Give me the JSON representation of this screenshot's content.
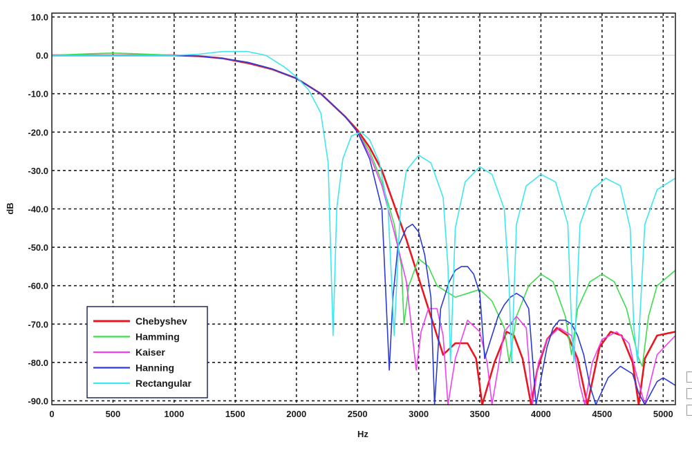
{
  "chart_data": {
    "type": "line",
    "title": "",
    "xlabel": "Hz",
    "ylabel": "dB",
    "xlim": [
      0,
      5100
    ],
    "ylim": [
      -91,
      11
    ],
    "x_ticks": [
      0,
      500,
      1000,
      1500,
      2000,
      2500,
      3000,
      3500,
      4000,
      4500,
      5000
    ],
    "y_ticks": [
      10.0,
      0.0,
      -10.0,
      -20.0,
      -30.0,
      -40.0,
      -50.0,
      -60.0,
      -70.0,
      -80.0,
      -90.0
    ],
    "x_tick_labels": [
      "0",
      "500",
      "1000",
      "1500",
      "2000",
      "2500",
      "3000",
      "3500",
      "4000",
      "4500",
      "5000"
    ],
    "y_tick_labels": [
      "10.0",
      "0.0",
      "-10.0",
      "-20.0",
      "-30.0",
      "-40.0",
      "-50.0",
      "-60.0",
      "-70.0",
      "-80.0",
      "-90.0"
    ],
    "grid": true,
    "legend_position": "bottom-left",
    "series": [
      {
        "name": "Chebyshev",
        "color": "#e8161e",
        "x": [
          0,
          500,
          1000,
          1200,
          1400,
          1600,
          1800,
          2000,
          2200,
          2400,
          2500,
          2600,
          2700,
          2800,
          2900,
          3000,
          3100,
          3200,
          3300,
          3400,
          3470,
          3520,
          3620,
          3720,
          3780,
          3850,
          3920,
          3970,
          4050,
          4130,
          4220,
          4300,
          4380,
          4480,
          4570,
          4660,
          4750,
          4800,
          4850,
          4950,
          5100
        ],
        "y": [
          0,
          0,
          0,
          -0.2,
          -0.8,
          -2,
          -3.6,
          -6,
          -10,
          -16,
          -19.5,
          -24,
          -30,
          -39,
          -48,
          -58,
          -68,
          -78,
          -75,
          -75,
          -79,
          -91,
          -80,
          -72,
          -73,
          -79,
          -91,
          -82,
          -74,
          -71,
          -73,
          -79,
          -91,
          -76,
          -72,
          -73,
          -80,
          -91,
          -79,
          -73,
          -72
        ]
      },
      {
        "name": "Hamming",
        "color": "#3ddc4d",
        "x": [
          0,
          300,
          500,
          700,
          1000,
          1200,
          1400,
          1600,
          1800,
          2000,
          2200,
          2400,
          2500,
          2600,
          2700,
          2800,
          2860,
          2880,
          2920,
          3000,
          3080,
          3150,
          3300,
          3400,
          3500,
          3600,
          3700,
          3740,
          3800,
          3900,
          4000,
          4100,
          4200,
          4250,
          4300,
          4400,
          4500,
          4600,
          4700,
          4800,
          4830,
          4880,
          4950,
          5100
        ],
        "y": [
          0,
          0.4,
          0.6,
          0.4,
          0,
          -0.2,
          -0.8,
          -1.8,
          -3.5,
          -6,
          -10,
          -16,
          -20,
          -25,
          -33,
          -44,
          -55,
          -70,
          -60,
          -53,
          -55,
          -60,
          -63,
          -62,
          -61,
          -64,
          -71,
          -80,
          -68,
          -60,
          -57,
          -59,
          -68,
          -78,
          -66,
          -59,
          -57,
          -59,
          -66,
          -79,
          -81,
          -68,
          -60,
          -56
        ]
      },
      {
        "name": "Kaiser",
        "color": "#f23ef0",
        "x": [
          0,
          500,
          1000,
          1200,
          1400,
          1600,
          1800,
          2000,
          2200,
          2400,
          2500,
          2600,
          2700,
          2800,
          2900,
          2980,
          3020,
          3080,
          3150,
          3200,
          3240,
          3300,
          3400,
          3500,
          3560,
          3600,
          3700,
          3800,
          3880,
          3930,
          3980,
          4050,
          4150,
          4250,
          4320,
          4360,
          4420,
          4500,
          4620,
          4720,
          4780,
          4850,
          4950,
          5100
        ],
        "y": [
          0,
          0,
          0,
          -0.2,
          -0.8,
          -1.8,
          -3.5,
          -6,
          -10,
          -16,
          -20,
          -26,
          -34,
          -46,
          -59,
          -82,
          -72,
          -66,
          -66,
          -73,
          -91,
          -79,
          -69,
          -72,
          -80,
          -91,
          -72,
          -68,
          -71,
          -91,
          -80,
          -74,
          -71,
          -73,
          -86,
          -91,
          -80,
          -74,
          -72,
          -75,
          -83,
          -91,
          -78,
          -73
        ]
      },
      {
        "name": "Hanning",
        "color": "#2a3ad6",
        "x": [
          0,
          500,
          1000,
          1200,
          1400,
          1600,
          1800,
          2000,
          2200,
          2400,
          2500,
          2600,
          2700,
          2760,
          2790,
          2830,
          2900,
          2950,
          3000,
          3050,
          3100,
          3130,
          3180,
          3250,
          3300,
          3350,
          3400,
          3450,
          3500,
          3540,
          3600,
          3650,
          3700,
          3750,
          3800,
          3850,
          3900,
          3960,
          4050,
          4100,
          4150,
          4200,
          4250,
          4300,
          4350,
          4400,
          4450,
          4550,
          4650,
          4750,
          4800,
          4850,
          4900,
          4950,
          5000,
          5050,
          5100
        ],
        "y": [
          0,
          0,
          0,
          -0.2,
          -0.8,
          -1.8,
          -3.5,
          -6,
          -10,
          -16,
          -20,
          -27,
          -40,
          -82,
          -63,
          -50,
          -45,
          -44,
          -46,
          -52,
          -63,
          -91,
          -66,
          -59,
          -56,
          -55,
          -55,
          -57,
          -62,
          -79,
          -73,
          -68,
          -65,
          -63,
          -62,
          -63,
          -66,
          -91,
          -76,
          -71,
          -69,
          -69,
          -70,
          -73,
          -78,
          -86,
          -91,
          -84,
          -81,
          -83,
          -88,
          -91,
          -88,
          -85,
          -84,
          -85,
          -86
        ]
      },
      {
        "name": "Rectangular",
        "color": "#3ee6ee",
        "x": [
          0,
          500,
          1000,
          1200,
          1400,
          1600,
          1750,
          1900,
          2000,
          2100,
          2200,
          2260,
          2300,
          2330,
          2380,
          2450,
          2530,
          2600,
          2680,
          2750,
          2800,
          2850,
          2900,
          3000,
          3100,
          3200,
          3240,
          3260,
          3300,
          3380,
          3500,
          3600,
          3700,
          3740,
          3760,
          3800,
          3880,
          4000,
          4120,
          4220,
          4250,
          4270,
          4320,
          4420,
          4530,
          4650,
          4730,
          4760,
          4790,
          4850,
          4950,
          5100
        ],
        "y": [
          0,
          0,
          0,
          0.3,
          1,
          1,
          0,
          -3,
          -5.6,
          -9,
          -15,
          -28,
          -73,
          -40,
          -27,
          -21,
          -20,
          -22,
          -28,
          -40,
          -73,
          -40,
          -30,
          -26,
          -28,
          -37,
          -55,
          -80,
          -45,
          -33,
          -29,
          -31,
          -40,
          -60,
          -80,
          -44,
          -34,
          -31,
          -33,
          -44,
          -70,
          -80,
          -44,
          -35,
          -32,
          -34,
          -45,
          -71,
          -80,
          -44,
          -35,
          -32
        ]
      }
    ]
  },
  "colors": {
    "background": "#ffffff",
    "grid": "#1a1a1a",
    "zero_line": "#d4d4d4"
  }
}
